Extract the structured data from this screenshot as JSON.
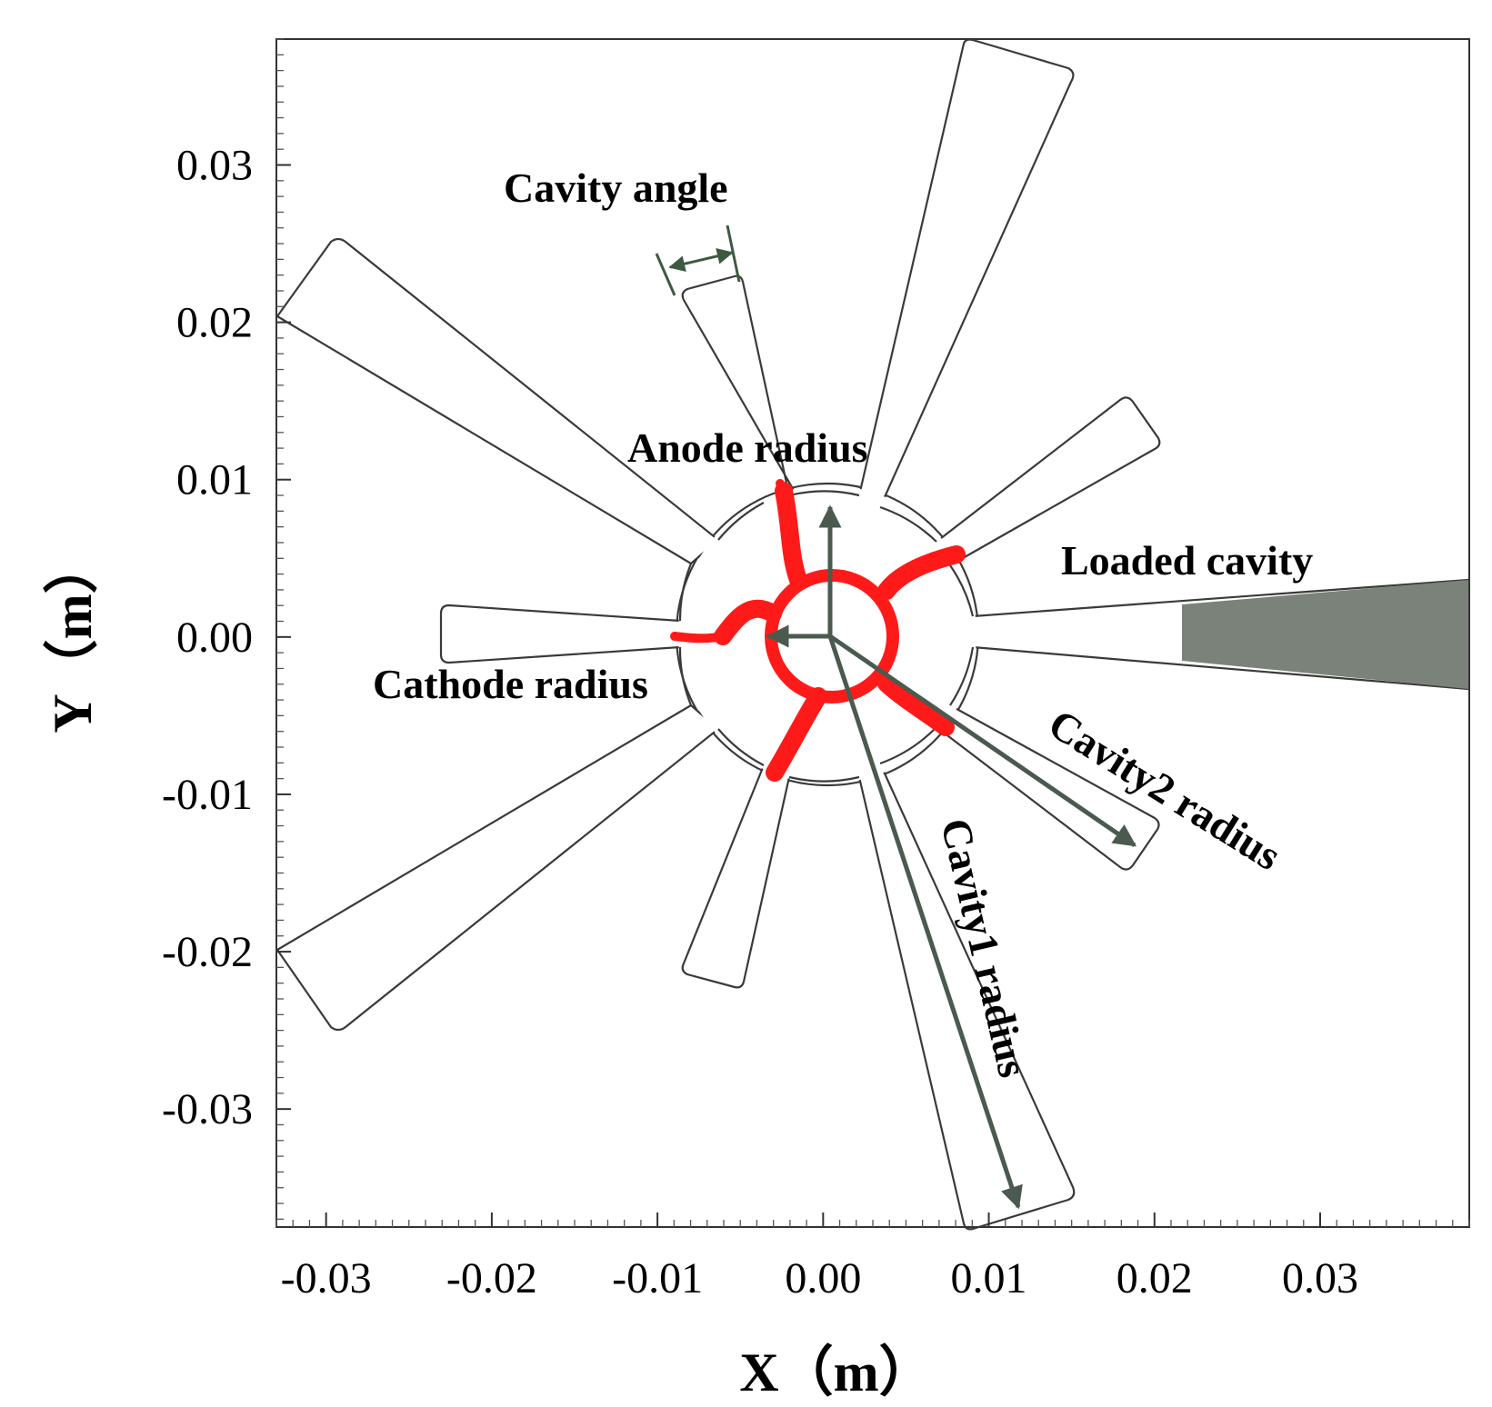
{
  "axes": {
    "xlabel": "X（m）",
    "ylabel": "Y（m）",
    "xlim": [
      -0.033,
      0.039
    ],
    "ylim": [
      -0.0375,
      0.038
    ],
    "xticks": [
      {
        "value": -0.03,
        "label": "-0.03"
      },
      {
        "value": -0.02,
        "label": "-0.02"
      },
      {
        "value": -0.01,
        "label": "-0.01"
      },
      {
        "value": 0.0,
        "label": "0.00"
      },
      {
        "value": 0.01,
        "label": "0.01"
      },
      {
        "value": 0.02,
        "label": "0.02"
      },
      {
        "value": 0.03,
        "label": "0.03"
      }
    ],
    "yticks": [
      {
        "value": 0.03,
        "label": "0.03"
      },
      {
        "value": 0.02,
        "label": "0.02"
      },
      {
        "value": 0.01,
        "label": "0.01"
      },
      {
        "value": 0.0,
        "label": "0.00"
      },
      {
        "value": -0.01,
        "label": "-0.01"
      },
      {
        "value": -0.02,
        "label": "-0.02"
      },
      {
        "value": -0.03,
        "label": "-0.03"
      }
    ]
  },
  "annotations": {
    "cavity_angle": "Cavity angle",
    "anode_radius": "Anode radius",
    "cathode_radius": "Cathode radius",
    "loaded_cavity": "Loaded cavity",
    "cavity2_radius": "Cavity2 radius",
    "cavity1_radius": "Cavity1 radius"
  },
  "colors": {
    "outline": "#3a3a3a",
    "arrow": "#4a5a4f",
    "loaded_cavity_fill": "#7b8279",
    "electron_cloud": "#ff1a1a"
  }
}
